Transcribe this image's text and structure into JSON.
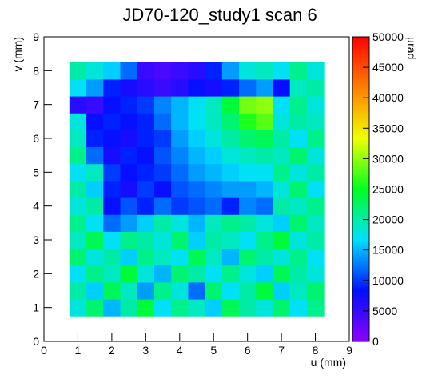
{
  "chart_data": {
    "type": "heatmap",
    "title": "JD70-120_study1 scan 6",
    "x_label": "u (mm)",
    "y_label": "v (mm)",
    "z_label": "µrad",
    "xlim": [
      0,
      9
    ],
    "ylim": [
      0,
      9
    ],
    "zlim": [
      0,
      50000
    ],
    "xticks": [
      0,
      1,
      2,
      3,
      4,
      5,
      6,
      7,
      8,
      9
    ],
    "yticks": [
      0,
      1,
      2,
      3,
      4,
      5,
      6,
      7,
      8,
      9
    ],
    "zticks": [
      0,
      5000,
      10000,
      15000,
      20000,
      25000,
      30000,
      35000,
      40000,
      45000,
      50000
    ],
    "colorscale": [
      "#8c00ff",
      "#0010ff",
      "#00e0ff",
      "#00ff20",
      "#f0ff00",
      "#ff8000",
      "#ff0000"
    ],
    "x_edges": [
      0.75,
      1.25,
      1.75,
      2.25,
      2.75,
      3.25,
      3.75,
      4.25,
      4.75,
      5.25,
      5.75,
      6.25,
      6.75,
      7.25,
      7.75,
      8.25
    ],
    "y_edges": [
      0.75,
      1.25,
      1.75,
      2.25,
      2.75,
      3.25,
      3.75,
      4.25,
      4.75,
      5.25,
      5.75,
      6.25,
      6.75,
      7.25,
      7.75,
      8.25
    ],
    "z": [
      [
        18000,
        22000,
        15000,
        20000,
        24000,
        17000,
        21000,
        19000,
        16000,
        23000,
        20000,
        18000,
        22000,
        17000,
        21000
      ],
      [
        20000,
        16000,
        23000,
        19000,
        14000,
        21000,
        18000,
        12000,
        22000,
        17000,
        20000,
        24000,
        16000,
        19000,
        22000
      ],
      [
        17000,
        21000,
        19000,
        24000,
        18000,
        15000,
        22000,
        20000,
        17000,
        21000,
        18000,
        16000,
        23000,
        20000,
        18000
      ],
      [
        22000,
        18000,
        20000,
        16000,
        21000,
        19000,
        17000,
        23000,
        19000,
        15000,
        22000,
        20000,
        18000,
        21000,
        17000
      ],
      [
        19000,
        23000,
        17000,
        21000,
        20000,
        18000,
        22000,
        16000,
        20000,
        19000,
        17000,
        21000,
        24000,
        18000,
        20000
      ],
      [
        21000,
        17000,
        12000,
        14000,
        16000,
        20000,
        18000,
        15000,
        19000,
        21000,
        20000,
        18000,
        16000,
        22000,
        19000
      ],
      [
        18000,
        20000,
        8000,
        11000,
        9000,
        12000,
        10000,
        11000,
        12000,
        9000,
        13000,
        12000,
        20000,
        19000,
        21000
      ],
      [
        20000,
        16000,
        9000,
        7000,
        10000,
        8000,
        11000,
        12000,
        13000,
        14000,
        14000,
        15000,
        18000,
        22000,
        17000
      ],
      [
        17000,
        19000,
        10000,
        8000,
        9000,
        10000,
        12000,
        14000,
        15000,
        16000,
        17000,
        17000,
        21000,
        18000,
        20000
      ],
      [
        21000,
        12000,
        7000,
        9000,
        8000,
        11000,
        13000,
        15000,
        16000,
        18000,
        19000,
        20000,
        19000,
        22000,
        18000
      ],
      [
        19000,
        9000,
        8000,
        7000,
        9000,
        10000,
        14000,
        16000,
        18000,
        20000,
        22000,
        23000,
        20000,
        17000,
        21000
      ],
      [
        18000,
        8000,
        9000,
        8000,
        9000,
        12000,
        15000,
        17000,
        19000,
        22000,
        26000,
        28000,
        18000,
        20000,
        19000
      ],
      [
        6000,
        5000,
        8000,
        9000,
        10000,
        13000,
        15000,
        17000,
        19000,
        24000,
        29000,
        30000,
        17000,
        21000,
        18000
      ],
      [
        17000,
        14000,
        9000,
        7000,
        6000,
        5000,
        6000,
        8000,
        7000,
        9000,
        12000,
        14000,
        8000,
        19000,
        20000
      ],
      [
        20000,
        18000,
        16000,
        12000,
        5000,
        4000,
        5000,
        6000,
        9000,
        14000,
        18000,
        19000,
        17000,
        21000,
        18000
      ]
    ]
  }
}
